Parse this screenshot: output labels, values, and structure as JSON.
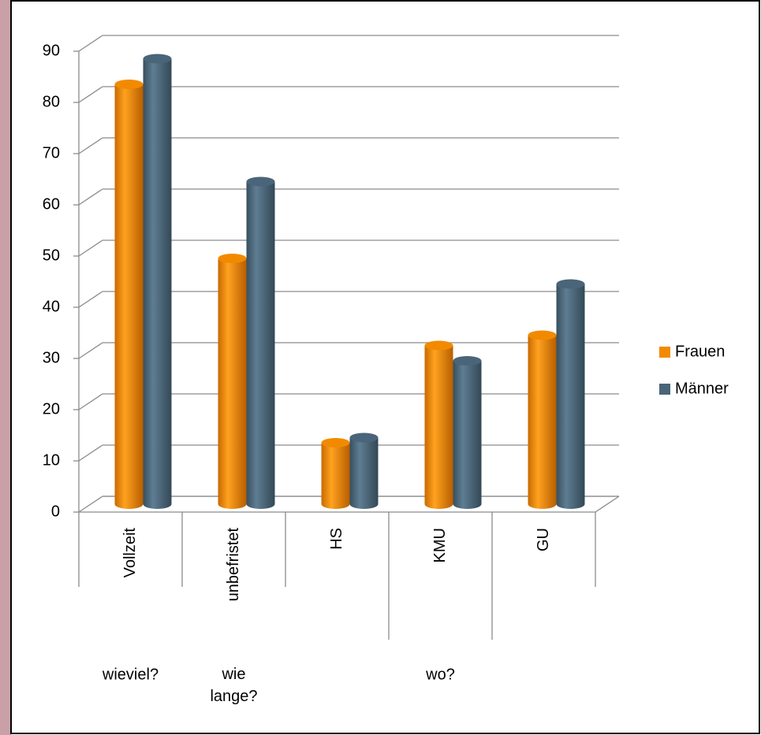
{
  "chart_data": {
    "type": "bar3d",
    "categories": [
      "Vollzeit",
      "unbefristet",
      "HS",
      "KMU",
      "GU"
    ],
    "category_groups": [
      {
        "label": "wieviel?",
        "span": 1
      },
      {
        "label": "wie lange?",
        "span": 1
      },
      {
        "label": "wo?",
        "span": 3
      }
    ],
    "series": [
      {
        "name": "Frauen",
        "color": "#f28a00",
        "values": [
          82,
          48,
          12,
          31,
          33
        ]
      },
      {
        "name": "Männer",
        "color": "#4a6579",
        "values": [
          87,
          63,
          13,
          28,
          43
        ]
      }
    ],
    "ylim": [
      0,
      90
    ],
    "yticks": [
      0,
      10,
      20,
      30,
      40,
      50,
      60,
      70,
      80,
      90
    ],
    "grid": true,
    "legend": "right"
  }
}
